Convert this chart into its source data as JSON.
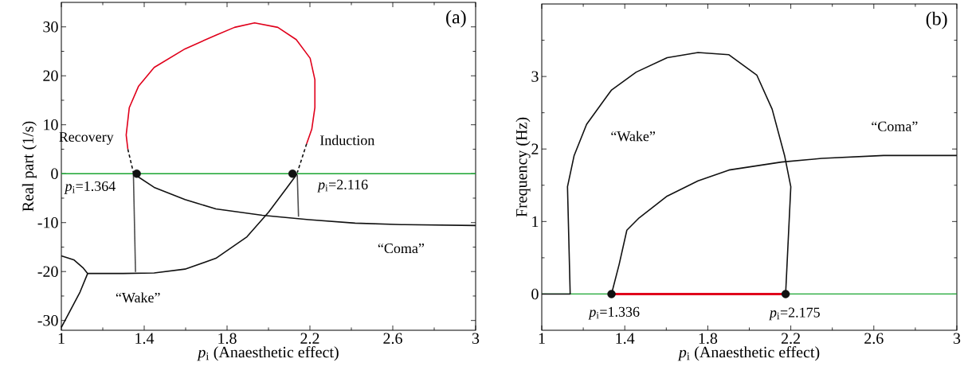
{
  "chart_data": [
    {
      "type": "line",
      "title": "(a)",
      "xlabel": "*p*$_{i}$ (Anaesthetic effect)",
      "ylabel": "Real part (1/s)",
      "xlim": [
        1,
        3
      ],
      "ylim": [
        -32,
        35
      ],
      "xticks": [
        1,
        {
          "value": 1.2,
          "label": null
        },
        1.4,
        {
          "value": 1.6,
          "label": null
        },
        1.8,
        {
          "value": 2.0,
          "label": null
        },
        2.2,
        {
          "value": 2.4,
          "label": null
        },
        2.6,
        {
          "value": 2.8,
          "label": null
        },
        3
      ],
      "yticks": [
        -30,
        {
          "value": -25,
          "label": null
        },
        -20,
        {
          "value": -15,
          "label": null
        },
        -10,
        {
          "value": -5,
          "label": null
        },
        0,
        {
          "value": 5,
          "label": null
        },
        10,
        {
          "value": 15,
          "label": null
        },
        20,
        {
          "value": 25,
          "label": null
        },
        30
      ],
      "grid": false,
      "ref_lines": [
        {
          "axis": "y",
          "value": 0,
          "color": "#1aa531"
        }
      ],
      "series": [
        {
          "color": "#e0001b",
          "x": [
            1.321,
            1.313,
            1.328,
            1.373,
            1.448,
            1.597,
            1.746,
            1.836,
            1.933,
            2.045,
            2.134,
            2.201,
            2.224,
            2.224,
            2.209,
            2.184
          ],
          "values": [
            5.0,
            7.9,
            13.5,
            17.9,
            21.7,
            25.5,
            28.3,
            29.9,
            30.8,
            29.9,
            27.4,
            23.6,
            19.2,
            13.5,
            9.1,
            6.1
          ]
        },
        {
          "color": "#111111",
          "line_style": "dashed",
          "x": [
            1.321,
            1.348
          ],
          "values": [
            5.0,
            0.2
          ]
        },
        {
          "color": "#111111",
          "line_style": "dashed",
          "x": [
            2.184,
            2.139
          ],
          "values": [
            6.1,
            0.2
          ]
        },
        {
          "color": "#111111",
          "x": [
            1.348,
            1.448,
            1.597,
            1.746,
            1.97,
            2.194,
            2.418,
            2.642,
            3.0
          ],
          "values": [
            0,
            -2.8,
            -5.3,
            -7.2,
            -8.5,
            -9.4,
            -10.1,
            -10.4,
            -10.6
          ]
        },
        {
          "color": "#111111",
          "x": [
            2.139,
            2.09,
            2.0,
            1.896,
            1.746,
            1.597,
            1.448,
            1.299,
            1.127,
            1.104,
            1.06,
            1.0
          ],
          "values": [
            0,
            -2.8,
            -7.9,
            -12.9,
            -17.3,
            -19.5,
            -20.3,
            -20.4,
            -20.4,
            -19.2,
            -17.6,
            -16.8
          ]
        },
        {
          "color": "#111111",
          "x": [
            1.127,
            1.09,
            1.0
          ],
          "values": [
            -20.4,
            -24.2,
            -31.4
          ]
        },
        {
          "color": "#4d4d4d",
          "x": [
            1.348,
            1.358
          ],
          "values": [
            -0.3,
            -20.1
          ]
        },
        {
          "color": "#4d4d4d",
          "x": [
            2.139,
            2.145
          ],
          "values": [
            -0.3,
            -8.8
          ]
        },
        {
          "type": "scatter",
          "marker": "circle",
          "color": "#111111",
          "x": [
            1.364,
            2.116
          ],
          "values": [
            0,
            0
          ]
        }
      ],
      "annotations": [
        "Recovery",
        "Induction",
        "*p*$_{i}$=1.364",
        "*p*$_{i}$=2.116",
        "“Coma”",
        "“Wake”"
      ]
    },
    {
      "type": "line",
      "title": "(b)",
      "xlabel": "*p*$_{i}$ (Anaesthetic effect)",
      "ylabel": "Frequency (Hz)",
      "xlim": [
        1,
        3
      ],
      "ylim": [
        -0.5,
        4
      ],
      "xticks": [
        1,
        {
          "value": 1.2,
          "label": null
        },
        1.4,
        {
          "value": 1.6,
          "label": null
        },
        1.8,
        {
          "value": 2.0,
          "label": null
        },
        2.2,
        {
          "value": 2.4,
          "label": null
        },
        2.6,
        {
          "value": 2.8,
          "label": null
        },
        3
      ],
      "yticks": [
        0,
        {
          "value": 0.5,
          "label": null
        },
        1,
        {
          "value": 1.5,
          "label": null
        },
        2,
        {
          "value": 2.5,
          "label": null
        },
        3,
        {
          "value": 3.5,
          "label": null
        }
      ],
      "grid": false,
      "ref_lines": [
        {
          "axis": "y",
          "value": 0,
          "color": "#1aa531"
        }
      ],
      "series": [
        {
          "color": "#e0001b",
          "x": [
            1.336,
            2.175
          ],
          "values": [
            0,
            0
          ]
        },
        {
          "color": "#111111",
          "x": [
            1.0,
            1.137,
            1.124,
            1.156,
            1.216,
            1.335,
            1.455,
            1.604,
            1.753,
            1.902,
            2.036,
            2.11,
            2.17,
            2.2,
            2.175
          ],
          "values": [
            0,
            0,
            1.48,
            1.91,
            2.34,
            2.81,
            3.06,
            3.26,
            3.33,
            3.3,
            3.02,
            2.55,
            1.91,
            1.48,
            0
          ]
        },
        {
          "color": "#111111",
          "x": [
            1.336,
            1.373,
            1.41,
            1.469,
            1.604,
            1.753,
            1.902,
            2.155,
            2.349,
            2.647,
            3.0
          ],
          "values": [
            0,
            0.41,
            0.88,
            1.05,
            1.35,
            1.56,
            1.71,
            1.82,
            1.87,
            1.91,
            1.91
          ]
        },
        {
          "type": "scatter",
          "marker": "circle",
          "color": "#111111",
          "x": [
            1.336,
            2.175
          ],
          "values": [
            0,
            0
          ]
        }
      ],
      "annotations": [
        "“Wake”",
        "“Coma”",
        "*p*$_{i}$=1.336",
        "*p*$_{i}$=2.175"
      ]
    }
  ]
}
